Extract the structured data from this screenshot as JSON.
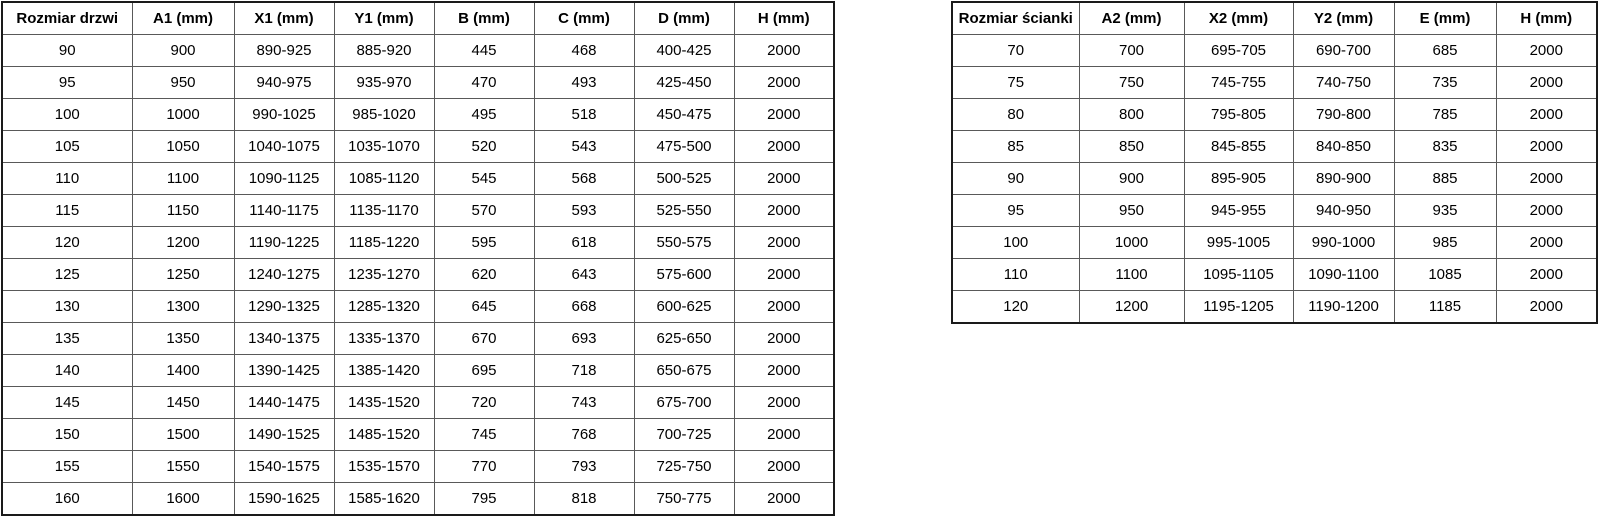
{
  "tables": [
    {
      "name": "door-size-table",
      "headers": [
        "Rozmiar drzwi",
        "A1 (mm)",
        "X1 (mm)",
        "Y1 (mm)",
        "B (mm)",
        "C (mm)",
        "D (mm)",
        "H (mm)"
      ],
      "rows": [
        [
          "90",
          "900",
          "890-925",
          "885-920",
          "445",
          "468",
          "400-425",
          "2000"
        ],
        [
          "95",
          "950",
          "940-975",
          "935-970",
          "470",
          "493",
          "425-450",
          "2000"
        ],
        [
          "100",
          "1000",
          "990-1025",
          "985-1020",
          "495",
          "518",
          "450-475",
          "2000"
        ],
        [
          "105",
          "1050",
          "1040-1075",
          "1035-1070",
          "520",
          "543",
          "475-500",
          "2000"
        ],
        [
          "110",
          "1100",
          "1090-1125",
          "1085-1120",
          "545",
          "568",
          "500-525",
          "2000"
        ],
        [
          "115",
          "1150",
          "1140-1175",
          "1135-1170",
          "570",
          "593",
          "525-550",
          "2000"
        ],
        [
          "120",
          "1200",
          "1190-1225",
          "1185-1220",
          "595",
          "618",
          "550-575",
          "2000"
        ],
        [
          "125",
          "1250",
          "1240-1275",
          "1235-1270",
          "620",
          "643",
          "575-600",
          "2000"
        ],
        [
          "130",
          "1300",
          "1290-1325",
          "1285-1320",
          "645",
          "668",
          "600-625",
          "2000"
        ],
        [
          "135",
          "1350",
          "1340-1375",
          "1335-1370",
          "670",
          "693",
          "625-650",
          "2000"
        ],
        [
          "140",
          "1400",
          "1390-1425",
          "1385-1420",
          "695",
          "718",
          "650-675",
          "2000"
        ],
        [
          "145",
          "1450",
          "1440-1475",
          "1435-1520",
          "720",
          "743",
          "675-700",
          "2000"
        ],
        [
          "150",
          "1500",
          "1490-1525",
          "1485-1520",
          "745",
          "768",
          "700-725",
          "2000"
        ],
        [
          "155",
          "1550",
          "1540-1575",
          "1535-1570",
          "770",
          "793",
          "725-750",
          "2000"
        ],
        [
          "160",
          "1600",
          "1590-1625",
          "1585-1620",
          "795",
          "818",
          "750-775",
          "2000"
        ]
      ]
    },
    {
      "name": "wall-size-table",
      "headers": [
        "Rozmiar ścianki",
        "A2 (mm)",
        "X2 (mm)",
        "Y2 (mm)",
        "E (mm)",
        "H (mm)"
      ],
      "rows": [
        [
          "70",
          "700",
          "695-705",
          "690-700",
          "685",
          "2000"
        ],
        [
          "75",
          "750",
          "745-755",
          "740-750",
          "735",
          "2000"
        ],
        [
          "80",
          "800",
          "795-805",
          "790-800",
          "785",
          "2000"
        ],
        [
          "85",
          "850",
          "845-855",
          "840-850",
          "835",
          "2000"
        ],
        [
          "90",
          "900",
          "895-905",
          "890-900",
          "885",
          "2000"
        ],
        [
          "95",
          "950",
          "945-955",
          "940-950",
          "935",
          "2000"
        ],
        [
          "100",
          "1000",
          "995-1005",
          "990-1000",
          "985",
          "2000"
        ],
        [
          "110",
          "1100",
          "1095-1105",
          "1090-1100",
          "1085",
          "2000"
        ],
        [
          "120",
          "1200",
          "1195-1205",
          "1190-1200",
          "1185",
          "2000"
        ]
      ]
    }
  ]
}
